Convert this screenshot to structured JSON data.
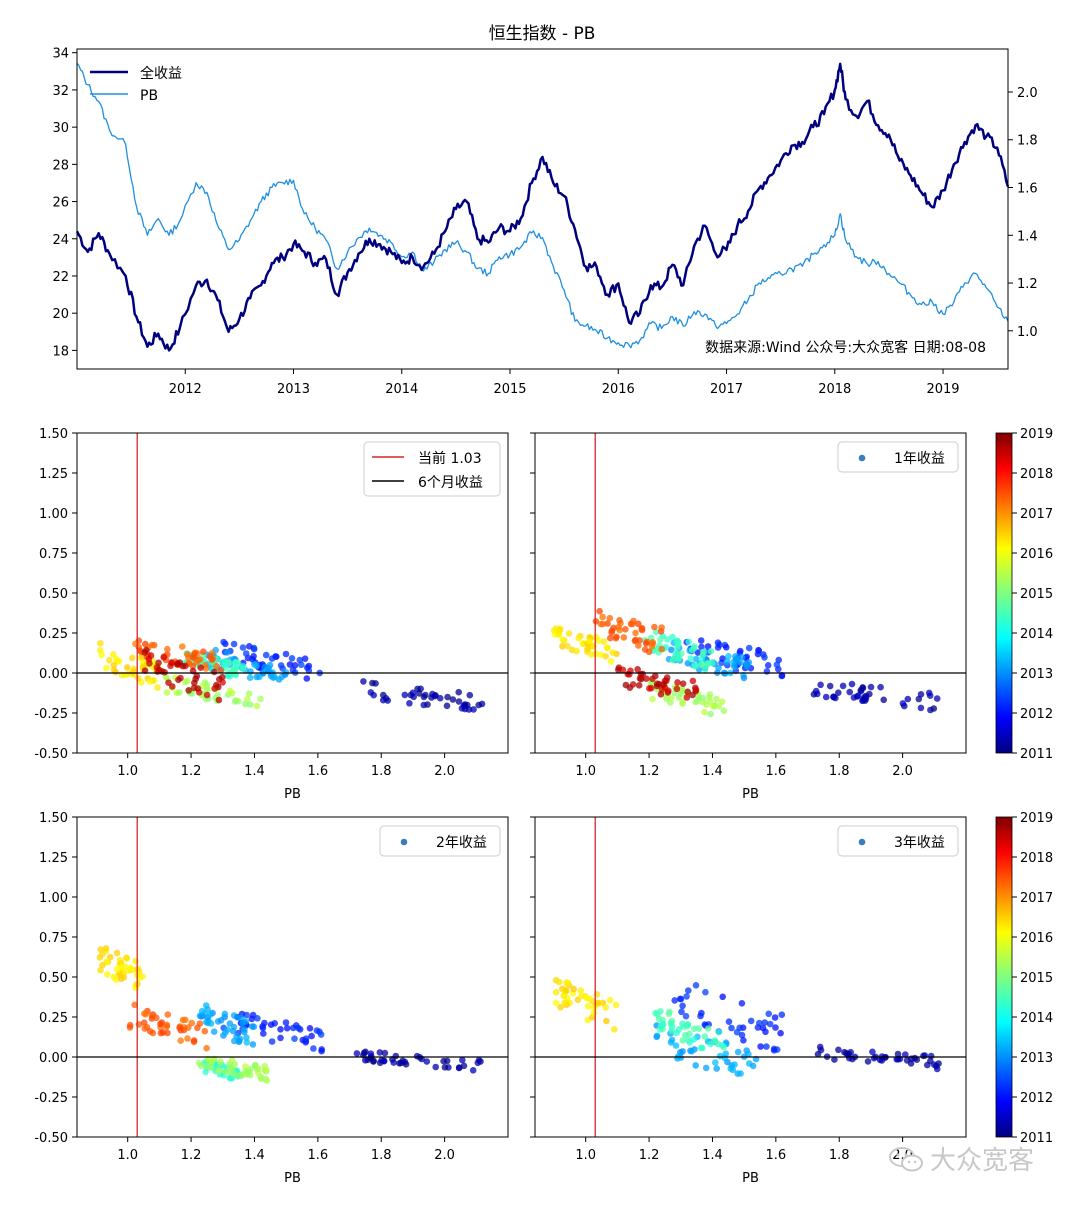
{
  "colors": {
    "total_return": "#00007f",
    "pb": "#1f8fe0",
    "current_line": "#d62728",
    "zero_line": "#000000"
  },
  "chart_data": [
    {
      "type": "line",
      "title": "恒生指数 - PB",
      "note": "数据来源:Wind  公众号:大众宽客  日期:08-08",
      "x_ticks": [
        "2012",
        "2013",
        "2014",
        "2015",
        "2016",
        "2017",
        "2018",
        "2019"
      ],
      "xlim": [
        2011.0,
        2019.6
      ],
      "y_left": {
        "ylim": [
          17,
          34.2
        ],
        "ticks": [
          "18",
          "20",
          "22",
          "24",
          "26",
          "28",
          "30",
          "32",
          "34"
        ]
      },
      "y_right": {
        "ylim": [
          0.84,
          2.18
        ],
        "ticks": [
          "1.0",
          "1.2",
          "1.4",
          "1.6",
          "1.8",
          "2.0"
        ]
      },
      "legend": {
        "placement": "upper left",
        "entries": [
          "全收益",
          "PB"
        ]
      },
      "series": [
        {
          "name": "全收益",
          "axis": "left",
          "x": [
            2011.0,
            2011.1,
            2011.2,
            2011.3,
            2011.45,
            2011.55,
            2011.65,
            2011.75,
            2011.85,
            2011.95,
            2012.1,
            2012.2,
            2012.3,
            2012.4,
            2012.5,
            2012.6,
            2012.7,
            2012.8,
            2012.9,
            2013.0,
            2013.1,
            2013.2,
            2013.3,
            2013.4,
            2013.5,
            2013.6,
            2013.7,
            2013.8,
            2013.9,
            2014.0,
            2014.1,
            2014.2,
            2014.3,
            2014.4,
            2014.5,
            2014.6,
            2014.7,
            2014.8,
            2014.9,
            2015.0,
            2015.1,
            2015.2,
            2015.3,
            2015.4,
            2015.5,
            2015.6,
            2015.7,
            2015.8,
            2015.9,
            2016.0,
            2016.1,
            2016.2,
            2016.3,
            2016.4,
            2016.5,
            2016.6,
            2016.7,
            2016.8,
            2016.9,
            2017.0,
            2017.1,
            2017.2,
            2017.3,
            2017.4,
            2017.5,
            2017.6,
            2017.7,
            2017.8,
            2017.9,
            2018.0,
            2018.05,
            2018.1,
            2018.2,
            2018.3,
            2018.4,
            2018.5,
            2018.6,
            2018.7,
            2018.8,
            2018.9,
            2019.0,
            2019.1,
            2019.2,
            2019.3,
            2019.4,
            2019.5,
            2019.6
          ],
          "y": [
            24.4,
            23.3,
            24.3,
            23.2,
            22.0,
            19.8,
            18.2,
            18.9,
            18.0,
            19.2,
            21.5,
            21.8,
            20.7,
            19.0,
            19.7,
            20.8,
            21.5,
            22.7,
            23.0,
            23.7,
            23.3,
            22.7,
            22.9,
            21.0,
            22.2,
            23.2,
            24.0,
            23.7,
            23.3,
            22.7,
            23.0,
            22.5,
            23.2,
            24.4,
            25.6,
            26.0,
            24.0,
            23.8,
            24.6,
            24.4,
            25.1,
            27.0,
            28.4,
            27.0,
            26.3,
            24.5,
            22.5,
            22.5,
            21.0,
            21.6,
            19.5,
            20.0,
            21.5,
            21.4,
            22.6,
            21.5,
            23.6,
            24.7,
            23.2,
            23.4,
            24.7,
            25.5,
            26.7,
            27.4,
            28.2,
            29.0,
            29.2,
            30.0,
            30.7,
            32.0,
            33.4,
            31.5,
            30.6,
            31.4,
            30.1,
            29.6,
            28.2,
            27.4,
            26.5,
            25.7,
            26.6,
            28.0,
            29.2,
            30.1,
            29.5,
            28.9,
            26.8
          ]
        },
        {
          "name": "PB",
          "axis": "right",
          "x": [
            2011.0,
            2011.1,
            2011.2,
            2011.3,
            2011.45,
            2011.55,
            2011.65,
            2011.75,
            2011.85,
            2011.95,
            2012.1,
            2012.2,
            2012.3,
            2012.4,
            2012.5,
            2012.6,
            2012.7,
            2012.8,
            2012.9,
            2013.0,
            2013.1,
            2013.2,
            2013.3,
            2013.4,
            2013.5,
            2013.6,
            2013.7,
            2013.8,
            2013.9,
            2014.0,
            2014.1,
            2014.2,
            2014.3,
            2014.4,
            2014.5,
            2014.6,
            2014.7,
            2014.8,
            2014.9,
            2015.0,
            2015.1,
            2015.2,
            2015.3,
            2015.4,
            2015.5,
            2015.6,
            2015.7,
            2015.8,
            2015.9,
            2016.0,
            2016.1,
            2016.2,
            2016.3,
            2016.4,
            2016.5,
            2016.6,
            2016.7,
            2016.8,
            2016.9,
            2017.0,
            2017.1,
            2017.2,
            2017.3,
            2017.4,
            2017.5,
            2017.6,
            2017.7,
            2017.8,
            2017.9,
            2018.0,
            2018.05,
            2018.1,
            2018.2,
            2018.3,
            2018.4,
            2018.5,
            2018.6,
            2018.7,
            2018.8,
            2018.9,
            2019.0,
            2019.1,
            2019.2,
            2019.3,
            2019.4,
            2019.5,
            2019.6
          ],
          "y": [
            2.12,
            2.03,
            1.96,
            1.84,
            1.78,
            1.52,
            1.4,
            1.47,
            1.4,
            1.46,
            1.62,
            1.58,
            1.44,
            1.34,
            1.38,
            1.46,
            1.54,
            1.6,
            1.62,
            1.63,
            1.49,
            1.43,
            1.38,
            1.26,
            1.33,
            1.39,
            1.43,
            1.4,
            1.37,
            1.31,
            1.33,
            1.25,
            1.29,
            1.34,
            1.37,
            1.33,
            1.26,
            1.24,
            1.31,
            1.32,
            1.35,
            1.41,
            1.39,
            1.27,
            1.17,
            1.04,
            1.02,
            1.0,
            0.97,
            0.95,
            0.94,
            0.96,
            1.03,
            1.01,
            1.06,
            1.02,
            1.08,
            1.07,
            1.02,
            1.03,
            1.07,
            1.13,
            1.2,
            1.22,
            1.24,
            1.26,
            1.27,
            1.32,
            1.36,
            1.4,
            1.49,
            1.38,
            1.31,
            1.28,
            1.29,
            1.24,
            1.2,
            1.15,
            1.11,
            1.12,
            1.07,
            1.12,
            1.2,
            1.24,
            1.18,
            1.1,
            1.04
          ]
        }
      ]
    },
    {
      "type": "scatter",
      "ylim": [
        -0.5,
        1.5
      ],
      "xlim": [
        0.84,
        2.2
      ],
      "xlabel": "PB",
      "x_ticks": [
        "1.0",
        "1.2",
        "1.4",
        "1.6",
        "1.8",
        "2.0"
      ],
      "y_ticks": [
        "1.50",
        "1.25",
        "1.00",
        "0.75",
        "0.50",
        "0.25",
        "0.00",
        "-0.25",
        "-0.50"
      ],
      "legend": {
        "placement": "upper right",
        "entries": [
          "当前 1.03",
          "6个月收益"
        ]
      },
      "reference_lines": {
        "vertical_pb": 1.03,
        "horizontal": 0.0
      },
      "clusters": [
        {
          "year": 2011.3,
          "pb": [
            1.72,
            2.12
          ],
          "ret": [
            -0.25,
            -0.03
          ]
        },
        {
          "year": 2012.3,
          "pb": [
            1.3,
            1.62
          ],
          "ret": [
            -0.06,
            0.2
          ]
        },
        {
          "year": 2013.3,
          "pb": [
            1.24,
            1.5
          ],
          "ret": [
            -0.08,
            0.16
          ]
        },
        {
          "year": 2014.5,
          "pb": [
            1.18,
            1.38
          ],
          "ret": [
            -0.05,
            0.14
          ]
        },
        {
          "year": 2015.3,
          "pb": [
            1.12,
            1.42
          ],
          "ret": [
            -0.22,
            -0.02
          ]
        },
        {
          "year": 2016.2,
          "pb": [
            0.9,
            1.1
          ],
          "ret": [
            -0.1,
            0.2
          ]
        },
        {
          "year": 2017.3,
          "pb": [
            1.02,
            1.3
          ],
          "ret": [
            0.0,
            0.22
          ]
        },
        {
          "year": 2018.5,
          "pb": [
            1.05,
            1.3
          ],
          "ret": [
            -0.18,
            0.15
          ]
        }
      ]
    },
    {
      "type": "scatter",
      "ylim": [
        -0.5,
        1.5
      ],
      "xlim": [
        0.84,
        2.2
      ],
      "xlabel": "PB",
      "x_ticks": [
        "1.0",
        "1.2",
        "1.4",
        "1.6",
        "1.8",
        "2.0"
      ],
      "legend": {
        "placement": "upper right",
        "entries": [
          "1年收益"
        ]
      },
      "reference_lines": {
        "vertical_pb": 1.03,
        "horizontal": 0.0
      },
      "clusters": [
        {
          "year": 2011.3,
          "pb": [
            1.72,
            2.12
          ],
          "ret": [
            -0.24,
            -0.04
          ]
        },
        {
          "year": 2012.3,
          "pb": [
            1.3,
            1.62
          ],
          "ret": [
            -0.05,
            0.25
          ]
        },
        {
          "year": 2013.3,
          "pb": [
            1.26,
            1.52
          ],
          "ret": [
            -0.05,
            0.2
          ]
        },
        {
          "year": 2014.5,
          "pb": [
            1.18,
            1.4
          ],
          "ret": [
            0.0,
            0.28
          ]
        },
        {
          "year": 2015.3,
          "pb": [
            1.2,
            1.44
          ],
          "ret": [
            -0.28,
            -0.05
          ]
        },
        {
          "year": 2016.2,
          "pb": [
            0.9,
            1.1
          ],
          "ret": [
            0.05,
            0.3
          ]
        },
        {
          "year": 2017.3,
          "pb": [
            1.02,
            1.25
          ],
          "ret": [
            0.1,
            0.43
          ]
        },
        {
          "year": 2018.5,
          "pb": [
            1.1,
            1.35
          ],
          "ret": [
            -0.18,
            0.05
          ]
        }
      ]
    },
    {
      "type": "scatter",
      "ylim": [
        -0.5,
        1.5
      ],
      "xlim": [
        0.84,
        2.2
      ],
      "xlabel": "PB",
      "x_ticks": [
        "1.0",
        "1.2",
        "1.4",
        "1.6",
        "1.8",
        "2.0"
      ],
      "y_ticks": [
        "1.50",
        "1.25",
        "1.00",
        "0.75",
        "0.50",
        "0.25",
        "0.00",
        "-0.25",
        "-0.50"
      ],
      "legend": {
        "placement": "upper right",
        "entries": [
          "2年收益"
        ]
      },
      "reference_lines": {
        "vertical_pb": 1.03,
        "horizontal": 0.0
      },
      "clusters": [
        {
          "year": 2011.3,
          "pb": [
            1.72,
            2.12
          ],
          "ret": [
            -0.09,
            0.04
          ]
        },
        {
          "year": 2012.3,
          "pb": [
            1.3,
            1.62
          ],
          "ret": [
            0.02,
            0.32
          ]
        },
        {
          "year": 2013.3,
          "pb": [
            1.22,
            1.4
          ],
          "ret": [
            0.05,
            0.36
          ]
        },
        {
          "year": 2014.5,
          "pb": [
            1.24,
            1.36
          ],
          "ret": [
            -0.15,
            -0.02
          ]
        },
        {
          "year": 2015.3,
          "pb": [
            1.22,
            1.44
          ],
          "ret": [
            -0.15,
            0.02
          ]
        },
        {
          "year": 2016.2,
          "pb": [
            0.9,
            1.05
          ],
          "ret": [
            0.4,
            0.72
          ]
        },
        {
          "year": 2017.3,
          "pb": [
            1.0,
            1.25
          ],
          "ret": [
            0.05,
            0.35
          ]
        }
      ]
    },
    {
      "type": "scatter",
      "ylim": [
        -0.5,
        1.5
      ],
      "xlim": [
        0.84,
        2.2
      ],
      "xlabel": "PB",
      "x_ticks": [
        "1.0",
        "1.2",
        "1.4",
        "1.6",
        "1.8",
        "2.0"
      ],
      "legend": {
        "placement": "upper right",
        "entries": [
          "3年收益"
        ]
      },
      "colorbar_ticks": [
        "2019",
        "2018",
        "2017",
        "2016",
        "2015",
        "2014",
        "2013",
        "2012",
        "2011"
      ],
      "reference_lines": {
        "vertical_pb": 1.03,
        "horizontal": 0.0
      },
      "clusters": [
        {
          "year": 2011.3,
          "pb": [
            1.72,
            2.12
          ],
          "ret": [
            -0.08,
            0.07
          ]
        },
        {
          "year": 2012.3,
          "pb": [
            1.28,
            1.62
          ],
          "ret": [
            0.0,
            0.5
          ]
        },
        {
          "year": 2013.3,
          "pb": [
            1.22,
            1.54
          ],
          "ret": [
            -0.15,
            0.2
          ]
        },
        {
          "year": 2014.5,
          "pb": [
            1.22,
            1.44
          ],
          "ret": [
            0.0,
            0.32
          ]
        },
        {
          "year": 2016.2,
          "pb": [
            0.9,
            1.1
          ],
          "ret": [
            0.15,
            0.5
          ]
        }
      ]
    }
  ],
  "watermark": {
    "text": "大众宽客",
    "icon": "wechat-icon"
  }
}
